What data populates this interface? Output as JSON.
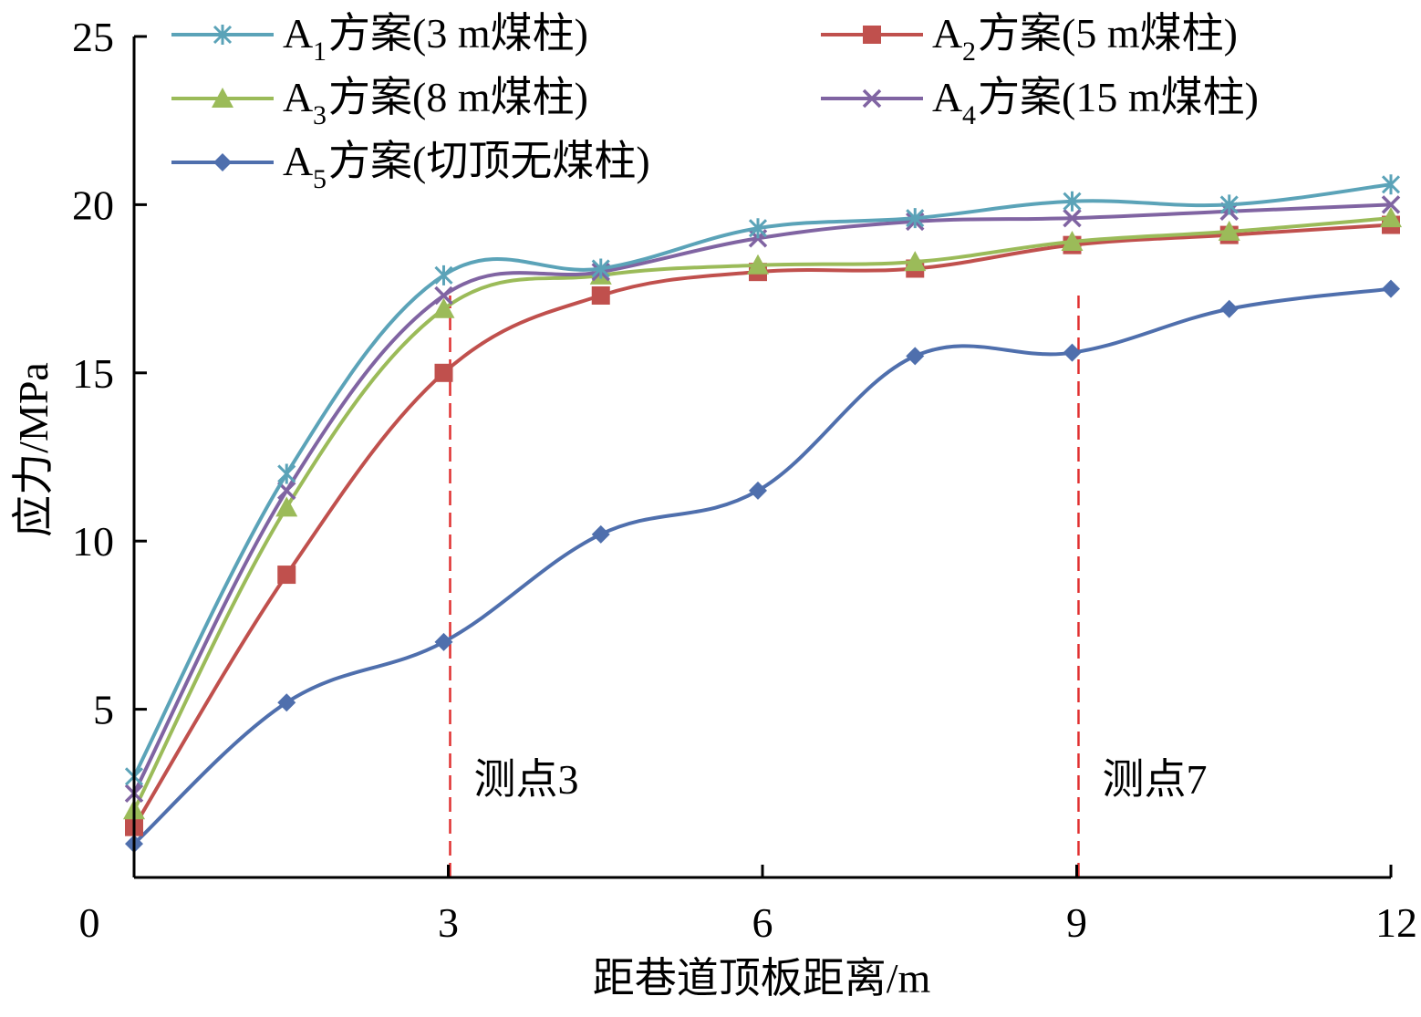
{
  "chart_data": {
    "type": "line",
    "xlabel": "距巷道顶板距离/m",
    "ylabel": "应力/MPa",
    "xlim": [
      0,
      12
    ],
    "ylim": [
      0,
      25
    ],
    "x_ticks": [
      0,
      3,
      6,
      9,
      12
    ],
    "y_ticks": [
      5,
      10,
      15,
      20,
      25
    ],
    "x_tick_labels": [
      "0",
      "3",
      "6",
      "9",
      "12"
    ],
    "y_tick_labels": [
      "5",
      "10",
      "15",
      "20",
      "25"
    ],
    "grid": false,
    "legend_position": "top-left",
    "series": [
      {
        "name": "A1方案(3 m煤柱)",
        "legend_main": "A",
        "legend_sub": "1",
        "legend_rest": "方案(3 m煤柱)",
        "color": "#5ba3b8",
        "marker": "asterisk",
        "x": [
          0,
          1.5,
          3,
          4.5,
          6,
          7.5,
          9,
          10.5,
          12
        ],
        "y": [
          3.0,
          12.0,
          17.9,
          18.1,
          19.3,
          19.6,
          20.1,
          20.0,
          20.6
        ]
      },
      {
        "name": "A2方案(5 m煤柱)",
        "legend_main": "A",
        "legend_sub": "2",
        "legend_rest": "方案(5 m煤柱)",
        "color": "#c0504d",
        "marker": "square",
        "x": [
          0,
          1.5,
          3,
          4.5,
          6,
          7.5,
          9,
          10.5,
          12
        ],
        "y": [
          1.5,
          9.0,
          15.0,
          17.3,
          18.0,
          18.1,
          18.8,
          19.1,
          19.4
        ]
      },
      {
        "name": "A3方案(8 m煤柱)",
        "legend_main": "A",
        "legend_sub": "3",
        "legend_rest": "方案(8 m煤柱)",
        "color": "#9bbb59",
        "marker": "triangle",
        "x": [
          0,
          1.5,
          3,
          4.5,
          6,
          7.5,
          9,
          10.5,
          12
        ],
        "y": [
          2.0,
          11.0,
          16.9,
          17.9,
          18.2,
          18.3,
          18.9,
          19.2,
          19.6
        ]
      },
      {
        "name": "A4方案(15 m煤柱)",
        "legend_main": "A",
        "legend_sub": "4",
        "legend_rest": "方案(15 m煤柱)",
        "color": "#8064a2",
        "marker": "x",
        "x": [
          0,
          1.5,
          3,
          4.5,
          6,
          7.5,
          9,
          10.5,
          12
        ],
        "y": [
          2.5,
          11.5,
          17.3,
          18.0,
          19.0,
          19.5,
          19.6,
          19.8,
          20.0
        ]
      },
      {
        "name": "A5方案(切顶无煤柱)",
        "legend_main": "A",
        "legend_sub": "5",
        "legend_rest": "方案(切顶无煤柱)",
        "color": "#4f6fad",
        "marker": "diamond",
        "x": [
          0,
          1.5,
          3,
          4.5,
          6,
          7.5,
          9,
          10.5,
          12
        ],
        "y": [
          1.0,
          5.2,
          7.0,
          10.2,
          11.5,
          15.5,
          15.6,
          16.9,
          17.5
        ]
      }
    ],
    "reference_lines": [
      {
        "x": 3,
        "label": "测点3",
        "color": "#e03030"
      },
      {
        "x": 9,
        "label": "测点7",
        "color": "#e03030"
      }
    ]
  }
}
